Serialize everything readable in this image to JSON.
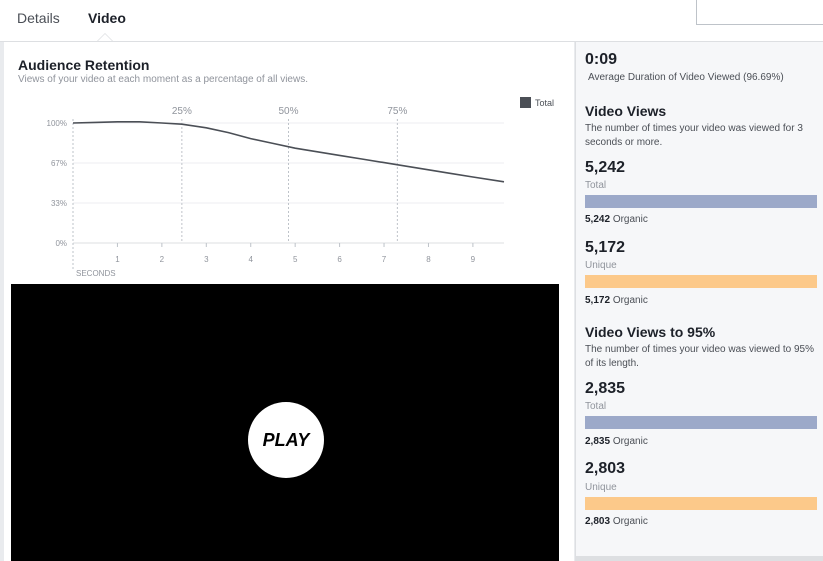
{
  "tabs": [
    {
      "label": "Details",
      "active": false
    },
    {
      "label": "Video",
      "active": true
    }
  ],
  "retention": {
    "title": "Audience Retention",
    "subtitle": "Views of your video at each moment as a percentage of all views.",
    "legend": "Total",
    "x_axis_label": "SECONDS"
  },
  "chart_data": {
    "type": "line",
    "title": "Audience Retention",
    "xlabel": "SECONDS",
    "ylabel": "",
    "x_ticks": [
      1,
      2,
      3,
      4,
      5,
      6,
      7,
      8,
      9
    ],
    "y_ticks": [
      "0%",
      "33%",
      "67%",
      "100%"
    ],
    "ylim": [
      0,
      100
    ],
    "xlim": [
      0,
      9.7
    ],
    "grid": true,
    "legend_position": "top-right",
    "markers": [
      {
        "label": "25%",
        "x": 2.45
      },
      {
        "label": "50%",
        "x": 4.85
      },
      {
        "label": "75%",
        "x": 7.3
      }
    ],
    "series": [
      {
        "name": "Total",
        "color": "#4b4f56",
        "x": [
          0,
          0.5,
          1,
          1.5,
          2,
          2.45,
          3,
          3.5,
          4,
          4.5,
          5,
          5.5,
          6,
          6.5,
          7,
          7.5,
          8,
          8.5,
          9,
          9.7
        ],
        "y": [
          100,
          100.5,
          101,
          101,
          100,
          99,
          96,
          92,
          87,
          83,
          79,
          76,
          73,
          70,
          67,
          64,
          61,
          58,
          55,
          51
        ]
      }
    ]
  },
  "video": {
    "play_label": "PLAY"
  },
  "sidebar": {
    "avg_duration": "0:09",
    "avg_duration_label": "Average Duration of Video Viewed (96.69%)",
    "video_views": {
      "title": "Video Views",
      "description": "The number of times your video was viewed for 3 seconds or more.",
      "total_value": "5,242",
      "total_label": "Total",
      "total_organic": "5,242",
      "unique_value": "5,172",
      "unique_label": "Unique",
      "unique_organic": "5,172",
      "organic_label": "Organic"
    },
    "video_views_95": {
      "title": "Video Views to 95%",
      "description": "The number of times your video was viewed to 95% of its length.",
      "total_value": "2,835",
      "total_label": "Total",
      "total_organic": "2,835",
      "unique_value": "2,803",
      "unique_label": "Unique",
      "unique_organic": "2,803",
      "organic_label": "Organic"
    },
    "colors": {
      "total_bar": "#9ca9c9",
      "unique_bar": "#fcc98a"
    }
  }
}
